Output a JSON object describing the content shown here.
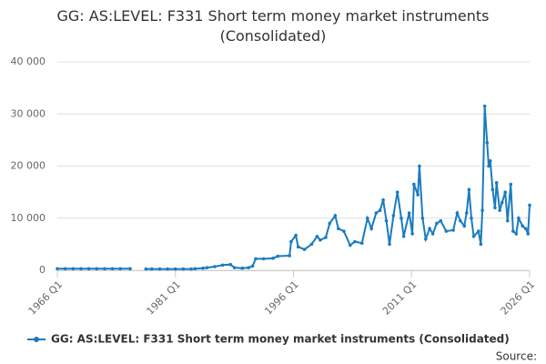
{
  "chart_data": {
    "type": "line",
    "title": "GG: AS:LEVEL: F331 Short term money market instruments (Consolidated)",
    "source": "Source:",
    "x": [
      1966,
      1967,
      1968,
      1969,
      1970,
      1971,
      1972,
      1973,
      1974,
      1975.25,
      1976.25,
      1977.25,
      1978,
      1979,
      1980,
      1981,
      1982,
      1983,
      1983.5,
      1984.5,
      1985,
      1986,
      1987,
      1988,
      1988.5,
      1989.5,
      1990.3,
      1990.8,
      1991.2,
      1992.2,
      1993.4,
      1994,
      1995.5,
      1995.7,
      1996.3,
      1996.6,
      1997.4,
      1998.3,
      1999,
      1999.4,
      2000.1,
      2000.6,
      2001.3,
      2001.7,
      2002.4,
      2003.2,
      2003.8,
      2004.7,
      2005.4,
      2005.9,
      2006.5,
      2007,
      2007.4,
      2007.8,
      2008.2,
      2008.7,
      2009.2,
      2009.7,
      2010,
      2010.7,
      2011.1,
      2011.3,
      2011.8,
      2012,
      2012.4,
      2012.8,
      2013.3,
      2013.7,
      2014.2,
      2014.7,
      2015.4,
      2016.3,
      2016.8,
      2017.2,
      2017.7,
      2018,
      2018.3,
      2018.6,
      2018.9,
      2019.5,
      2019.8,
      2020,
      2020.3,
      2020.6,
      2020.8,
      2021,
      2021.3,
      2021.6,
      2021.8,
      2022.2,
      2022.5,
      2022.9,
      2023.2,
      2023.6,
      2023.9,
      2024.3,
      2024.6,
      2025.1,
      2025.5,
      2025.8,
      2026
    ],
    "series": [
      {
        "name": "GG: AS:LEVEL: F331 Short term money market instruments (Consolidated)",
        "color": "#1a7bbf",
        "values": [
          300,
          300,
          300,
          300,
          300,
          300,
          300,
          300,
          300,
          300,
          null,
          250,
          250,
          250,
          250,
          250,
          250,
          250,
          300,
          400,
          500,
          700,
          1000,
          1100,
          500,
          400,
          500,
          800,
          2200,
          2200,
          2300,
          2700,
          2800,
          5500,
          6700,
          4500,
          4000,
          5000,
          6500,
          5800,
          6300,
          9000,
          10500,
          8000,
          7500,
          4800,
          5500,
          5200,
          10000,
          8000,
          11000,
          11500,
          13500,
          9500,
          5000,
          10500,
          15000,
          10000,
          6500,
          11000,
          7000,
          16500,
          14500,
          20000,
          10000,
          6000,
          8000,
          7000,
          9000,
          9500,
          7500,
          7700,
          11000,
          9500,
          8500,
          11000,
          15500,
          10000,
          6500,
          7500,
          5000,
          11500,
          31500,
          24500,
          20000,
          21000,
          15500,
          12000,
          16800,
          11500,
          13000,
          15000,
          9500,
          16500,
          7500,
          7000,
          10000,
          8500,
          8000,
          7000,
          12500
        ]
      }
    ],
    "xlim": [
      1966,
      2026
    ],
    "xticks": [
      {
        "value": 1966,
        "label": "1966 Q1"
      },
      {
        "value": 1981,
        "label": "1981 Q1"
      },
      {
        "value": 1996,
        "label": "1996 Q1"
      },
      {
        "value": 2011,
        "label": "2011 Q1"
      },
      {
        "value": 2026,
        "label": "2026 Q1"
      }
    ],
    "ylim": [
      0,
      40000
    ],
    "yticks": [
      0,
      {
        "value": 10000,
        "label": "10 000"
      },
      {
        "value": 20000,
        "label": "20 000"
      },
      {
        "value": 30000,
        "label": "30 000"
      },
      {
        "value": 40000,
        "label": "40 000"
      }
    ],
    "grid": true
  }
}
